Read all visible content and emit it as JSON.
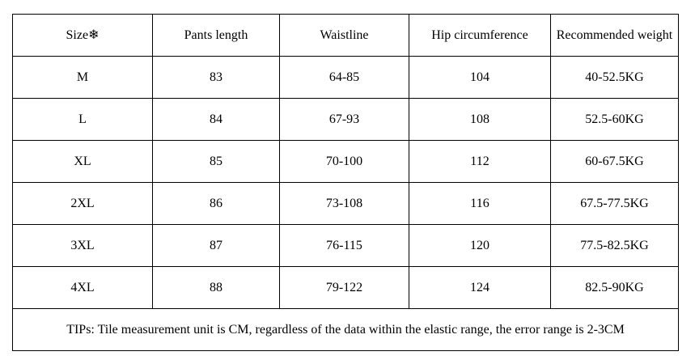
{
  "table": {
    "header": [
      "Size❄",
      "Pants length",
      "Waistline",
      "Hip circumference",
      "Recommended weight"
    ],
    "rows": [
      [
        "M",
        "83",
        "64-85",
        "104",
        "40-52.5KG"
      ],
      [
        "L",
        "84",
        "67-93",
        "108",
        "52.5-60KG"
      ],
      [
        "XL",
        "85",
        "70-100",
        "112",
        "60-67.5KG"
      ],
      [
        "2XL",
        "86",
        "73-108",
        "116",
        "67.5-77.5KG"
      ],
      [
        "3XL",
        "87",
        "76-115",
        "120",
        "77.5-82.5KG"
      ],
      [
        "4XL",
        "88",
        "79-122",
        "124",
        "82.5-90KG"
      ]
    ],
    "footer": "TIPs: Tile measurement unit is CM, regardless of the data within the elastic range, the error range is 2-3CM"
  }
}
